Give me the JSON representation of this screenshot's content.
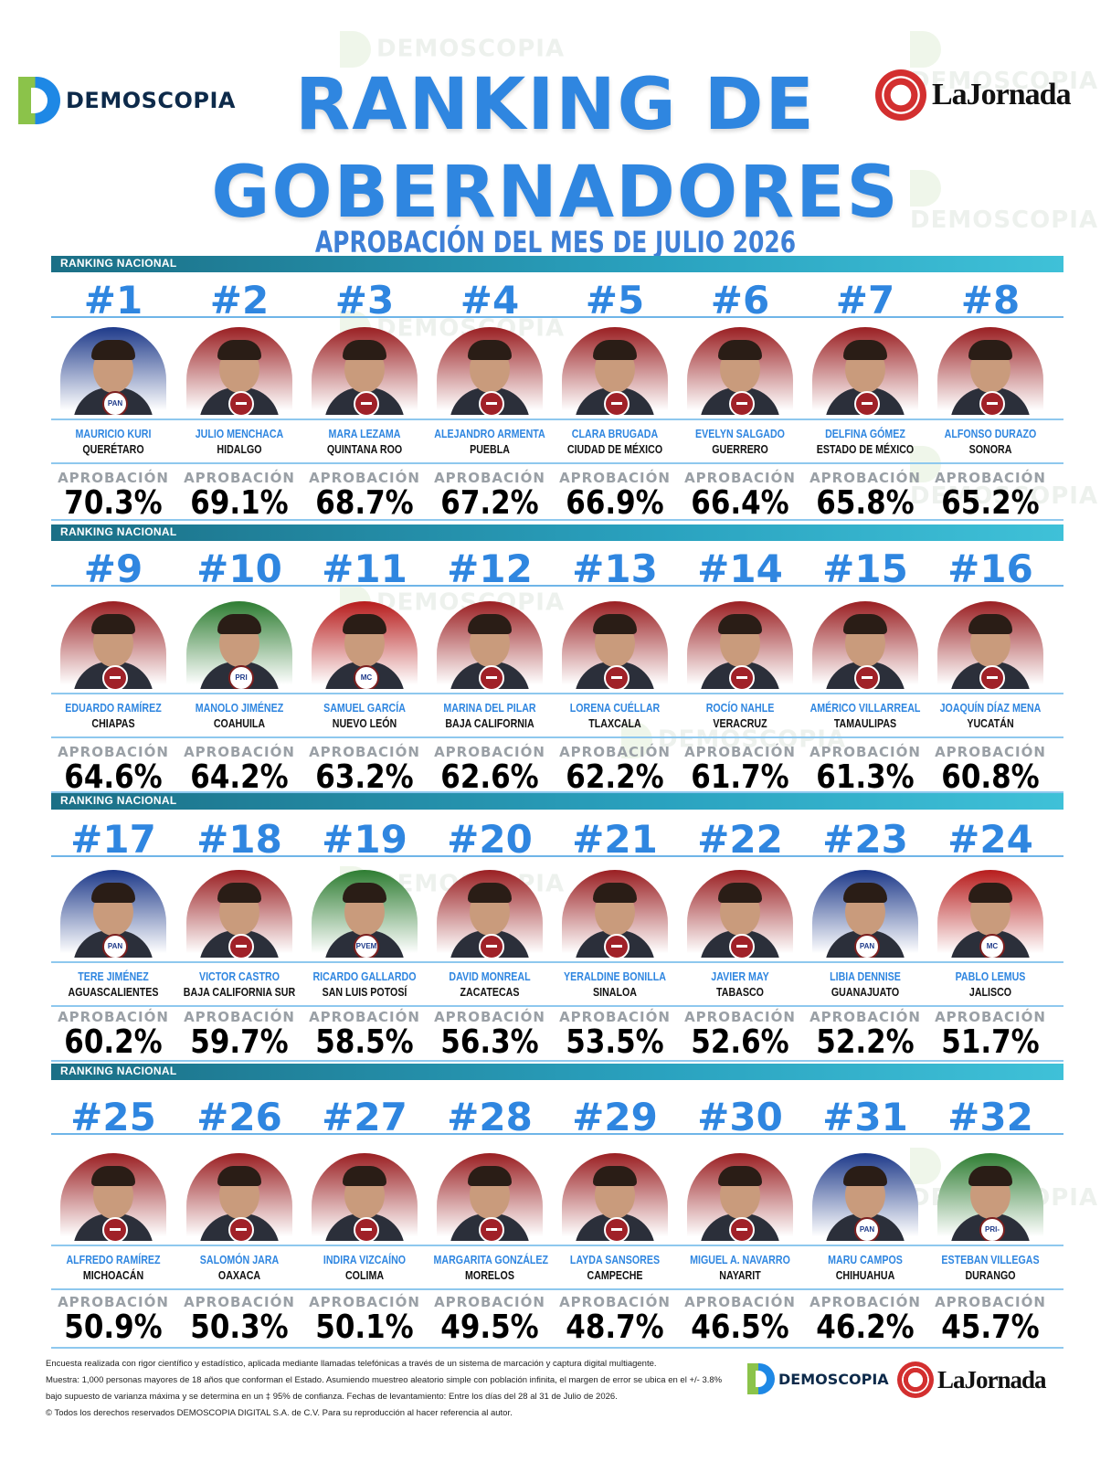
{
  "header": {
    "title_line1": "RANKING DE",
    "title_line2": "GOBERNADORES",
    "subtitle": "APROBACIÓN DEL MES DE JULIO 2026",
    "logo_left": "DEMOSCOPIA",
    "logo_right": "LaJornada"
  },
  "band_label": "RANKING NACIONAL",
  "approval_label": "APROBACIÓN",
  "watermark": "DEMOSCOPIA",
  "colors": {
    "blue": "#2f86e0",
    "morena": "#a02128",
    "pan": "#1e3a8a",
    "pri": "#2e7d32"
  },
  "governors": [
    {
      "rank": "#1",
      "name": "MAURICIO KURI",
      "state": "QUERÉTARO",
      "approval": "70.3%",
      "party": "PAN",
      "bg": "#1e3a8a"
    },
    {
      "rank": "#2",
      "name": "JULIO MENCHACA",
      "state": "HIDALGO",
      "approval": "69.1%",
      "party": "MORENA",
      "bg": "#9a1f22"
    },
    {
      "rank": "#3",
      "name": "MARA LEZAMA",
      "state": "QUINTANA ROO",
      "approval": "68.7%",
      "party": "MORENA",
      "bg": "#9a1f22"
    },
    {
      "rank": "#4",
      "name": "ALEJANDRO ARMENTA",
      "state": "PUEBLA",
      "approval": "67.2%",
      "party": "MORENA",
      "bg": "#9a1f22"
    },
    {
      "rank": "#5",
      "name": "CLARA BRUGADA",
      "state": "CIUDAD DE MÉXICO",
      "approval": "66.9%",
      "party": "MORENA",
      "bg": "#9a1f22"
    },
    {
      "rank": "#6",
      "name": "EVELYN SALGADO",
      "state": "GUERRERO",
      "approval": "66.4%",
      "party": "MORENA",
      "bg": "#9a1f22"
    },
    {
      "rank": "#7",
      "name": "DELFINA GÓMEZ",
      "state": "ESTADO DE MÉXICO",
      "approval": "65.8%",
      "party": "MORENA",
      "bg": "#9a1f22"
    },
    {
      "rank": "#8",
      "name": "ALFONSO DURAZO",
      "state": "SONORA",
      "approval": "65.2%",
      "party": "MORENA",
      "bg": "#9a1f22"
    },
    {
      "rank": "#9",
      "name": "EDUARDO RAMÍREZ",
      "state": "CHIAPAS",
      "approval": "64.6%",
      "party": "MORENA",
      "bg": "#9a1f22"
    },
    {
      "rank": "#10",
      "name": "MANOLO JIMÉNEZ",
      "state": "COAHUILA",
      "approval": "64.2%",
      "party": "PRI",
      "bg": "#2e7d32"
    },
    {
      "rank": "#11",
      "name": "SAMUEL GARCÍA",
      "state": "NUEVO LEÓN",
      "approval": "63.2%",
      "party": "MC",
      "bg": "#b71c1c"
    },
    {
      "rank": "#12",
      "name": "MARINA DEL PILAR",
      "state": "BAJA CALIFORNIA",
      "approval": "62.6%",
      "party": "MORENA",
      "bg": "#9a1f22"
    },
    {
      "rank": "#13",
      "name": "LORENA CUÉLLAR",
      "state": "TLAXCALA",
      "approval": "62.2%",
      "party": "MORENA",
      "bg": "#9a1f22"
    },
    {
      "rank": "#14",
      "name": "ROCÍO NAHLE",
      "state": "VERACRUZ",
      "approval": "61.7%",
      "party": "MORENA",
      "bg": "#9a1f22"
    },
    {
      "rank": "#15",
      "name": "AMÉRICO VILLARREAL",
      "state": "TAMAULIPAS",
      "approval": "61.3%",
      "party": "MORENA",
      "bg": "#9a1f22"
    },
    {
      "rank": "#16",
      "name": "JOAQUÍN DÍAZ MENA",
      "state": "YUCATÁN",
      "approval": "60.8%",
      "party": "MORENA",
      "bg": "#9a1f22"
    },
    {
      "rank": "#17",
      "name": "TERE JIMÉNEZ",
      "state": "AGUASCALIENTES",
      "approval": "60.2%",
      "party": "PAN",
      "bg": "#1e3a8a"
    },
    {
      "rank": "#18",
      "name": "VICTOR CASTRO",
      "state": "BAJA CALIFORNIA SUR",
      "approval": "59.7%",
      "party": "MORENA",
      "bg": "#9a1f22"
    },
    {
      "rank": "#19",
      "name": "RICARDO GALLARDO",
      "state": "SAN LUIS POTOSÍ",
      "approval": "58.5%",
      "party": "PVEM",
      "bg": "#2e7d32"
    },
    {
      "rank": "#20",
      "name": "DAVID MONREAL",
      "state": "ZACATECAS",
      "approval": "56.3%",
      "party": "MORENA",
      "bg": "#9a1f22"
    },
    {
      "rank": "#21",
      "name": "YERALDINE BONILLA",
      "state": "SINALOA",
      "approval": "53.5%",
      "party": "MORENA",
      "bg": "#9a1f22"
    },
    {
      "rank": "#22",
      "name": "JAVIER MAY",
      "state": "TABASCO",
      "approval": "52.6%",
      "party": "MORENA",
      "bg": "#9a1f22"
    },
    {
      "rank": "#23",
      "name": "LIBIA DENNISE",
      "state": "GUANAJUATO",
      "approval": "52.2%",
      "party": "PAN",
      "bg": "#1e3a8a"
    },
    {
      "rank": "#24",
      "name": "PABLO LEMUS",
      "state": "JALISCO",
      "approval": "51.7%",
      "party": "MC",
      "bg": "#b71c1c"
    },
    {
      "rank": "#25",
      "name": "ALFREDO RAMÍREZ",
      "state": "MICHOACÁN",
      "approval": "50.9%",
      "party": "MORENA",
      "bg": "#9a1f22"
    },
    {
      "rank": "#26",
      "name": "SALOMÓN JARA",
      "state": "OAXACA",
      "approval": "50.3%",
      "party": "MORENA",
      "bg": "#9a1f22"
    },
    {
      "rank": "#27",
      "name": "INDIRA VIZCAÍNO",
      "state": "COLIMA",
      "approval": "50.1%",
      "party": "MORENA",
      "bg": "#9a1f22"
    },
    {
      "rank": "#28",
      "name": "MARGARITA GONZÁLEZ",
      "state": "MORELOS",
      "approval": "49.5%",
      "party": "MORENA",
      "bg": "#9a1f22"
    },
    {
      "rank": "#29",
      "name": "LAYDA SANSORES",
      "state": "CAMPECHE",
      "approval": "48.7%",
      "party": "MORENA",
      "bg": "#9a1f22"
    },
    {
      "rank": "#30",
      "name": "MIGUEL A. NAVARRO",
      "state": "NAYARIT",
      "approval": "46.5%",
      "party": "MORENA",
      "bg": "#9a1f22"
    },
    {
      "rank": "#31",
      "name": "MARU CAMPOS",
      "state": "CHIHUAHUA",
      "approval": "46.2%",
      "party": "PAN",
      "bg": "#1e3a8a"
    },
    {
      "rank": "#32",
      "name": "ESTEBAN VILLEGAS",
      "state": "DURANGO",
      "approval": "45.7%",
      "party": "PRI-PAN",
      "bg": "#2e7d32"
    }
  ],
  "footer": {
    "line1": "Encuesta realizada con rigor científico y estadístico, aplicada mediante llamadas telefónicas a través de un sistema de marcación y captura digital multiagente.",
    "line2": "Muestra: 1,000 personas mayores de 18 años que conforman el Estado. Asumiendo muestreo aleatorio simple con población infinita, el margen de error se ubica en el +/- 3.8%",
    "line3": "bajo supuesto de varianza máxima y se determina en un ‡ 95% de confianza. Fechas de levantamiento: Entre los días del 28 al 31 de Julio de 2026.",
    "line4": "© Todos los derechos reservados DEMOSCOPIA DIGITAL S.A. de C.V. Para su reproducción al hacer referencia al autor."
  }
}
